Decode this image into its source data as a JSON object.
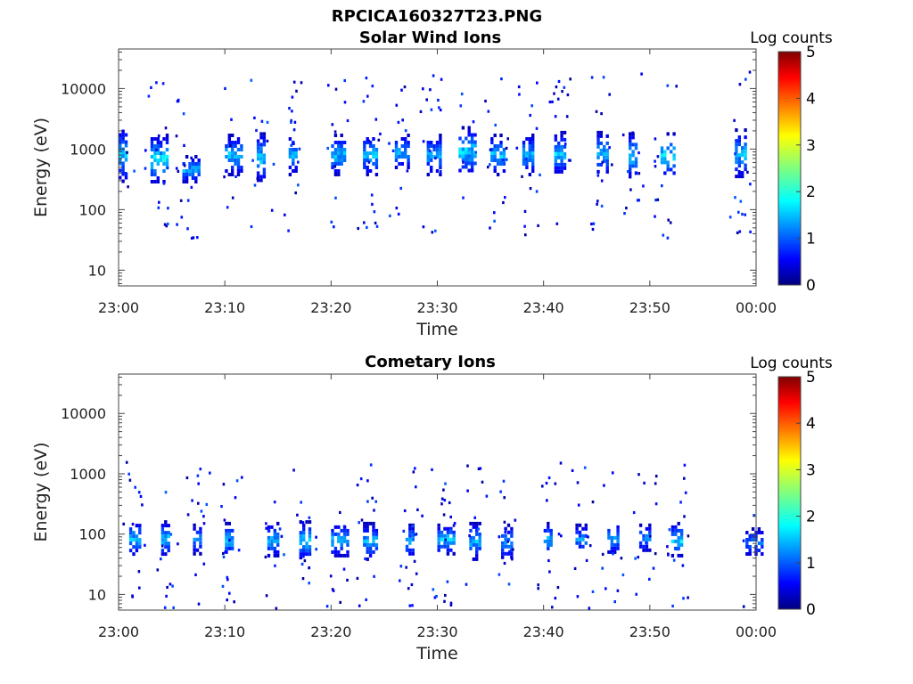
{
  "figure": {
    "title": "RPCICA160327T23.PNG"
  },
  "chart_data": [
    {
      "type": "heatmap",
      "title": "Solar Wind Ions",
      "xlabel": "Time",
      "ylabel": "Energy (eV)",
      "x_ticks": [
        "23:00",
        "23:10",
        "23:20",
        "23:30",
        "23:40",
        "23:50",
        "00:00"
      ],
      "xlim": [
        "23:00",
        "00:00"
      ],
      "y_ticks": [
        "10",
        "100",
        "1000",
        "10000"
      ],
      "ylim": [
        5.5,
        45000
      ],
      "yscale": "log",
      "colorbar": {
        "label": "Log counts",
        "ticks": [
          "0",
          "1",
          "2",
          "3",
          "4",
          "5"
        ],
        "range": [
          0,
          5
        ],
        "colormap": "jet"
      },
      "bursts": [
        {
          "t": "23:00",
          "e_low": 300,
          "e_high": 2400,
          "peak": 1.9
        },
        {
          "t": "23:03",
          "e_low": 280,
          "e_high": 1800,
          "peak": 2.2
        },
        {
          "t": "23:06",
          "e_low": 300,
          "e_high": 800,
          "peak": 1.8
        },
        {
          "t": "23:10",
          "e_low": 400,
          "e_high": 1800,
          "peak": 1.9
        },
        {
          "t": "23:13",
          "e_low": 300,
          "e_high": 1900,
          "peak": 2.0
        },
        {
          "t": "23:16",
          "e_low": 400,
          "e_high": 1800,
          "peak": 1.8
        },
        {
          "t": "23:20",
          "e_low": 400,
          "e_high": 1800,
          "peak": 1.9
        },
        {
          "t": "23:23",
          "e_low": 400,
          "e_high": 1800,
          "peak": 1.9
        },
        {
          "t": "23:26",
          "e_low": 500,
          "e_high": 1800,
          "peak": 1.8
        },
        {
          "t": "23:29",
          "e_low": 400,
          "e_high": 1800,
          "peak": 1.7
        },
        {
          "t": "23:32",
          "e_low": 400,
          "e_high": 2400,
          "peak": 2.0
        },
        {
          "t": "23:35",
          "e_low": 400,
          "e_high": 1800,
          "peak": 1.9
        },
        {
          "t": "23:38",
          "e_low": 400,
          "e_high": 1800,
          "peak": 1.9
        },
        {
          "t": "23:41",
          "e_low": 400,
          "e_high": 2000,
          "peak": 1.9
        },
        {
          "t": "23:45",
          "e_low": 400,
          "e_high": 2000,
          "peak": 1.9
        },
        {
          "t": "23:48",
          "e_low": 350,
          "e_high": 1900,
          "peak": 2.1
        },
        {
          "t": "23:51",
          "e_low": 350,
          "e_high": 1900,
          "peak": 2.1
        },
        {
          "t": "23:58",
          "e_low": 350,
          "e_high": 2200,
          "peak": 1.9
        }
      ]
    },
    {
      "type": "heatmap",
      "title": "Cometary Ions",
      "xlabel": "Time",
      "ylabel": "Energy (eV)",
      "x_ticks": [
        "23:00",
        "23:10",
        "23:20",
        "23:30",
        "23:40",
        "23:50",
        "00:00"
      ],
      "xlim": [
        "23:00",
        "00:00"
      ],
      "y_ticks": [
        "10",
        "100",
        "1000",
        "10000"
      ],
      "ylim": [
        5.5,
        45000
      ],
      "yscale": "log",
      "colorbar": {
        "label": "Log counts",
        "ticks": [
          "0",
          "1",
          "2",
          "3",
          "4",
          "5"
        ],
        "range": [
          0,
          5
        ],
        "colormap": "jet"
      },
      "bursts": [
        {
          "t": "23:01",
          "e_low": 45,
          "e_high": 170,
          "peak": 1.9
        },
        {
          "t": "23:04",
          "e_low": 45,
          "e_high": 170,
          "peak": 2.0
        },
        {
          "t": "23:07",
          "e_low": 50,
          "e_high": 150,
          "peak": 1.6
        },
        {
          "t": "23:10",
          "e_low": 45,
          "e_high": 160,
          "peak": 1.9
        },
        {
          "t": "23:14",
          "e_low": 45,
          "e_high": 160,
          "peak": 1.8
        },
        {
          "t": "23:17",
          "e_low": 40,
          "e_high": 170,
          "peak": 2.0
        },
        {
          "t": "23:20",
          "e_low": 45,
          "e_high": 160,
          "peak": 1.8
        },
        {
          "t": "23:23",
          "e_low": 40,
          "e_high": 160,
          "peak": 1.8
        },
        {
          "t": "23:27",
          "e_low": 45,
          "e_high": 150,
          "peak": 1.8
        },
        {
          "t": "23:30",
          "e_low": 50,
          "e_high": 150,
          "peak": 2.0
        },
        {
          "t": "23:33",
          "e_low": 40,
          "e_high": 160,
          "peak": 1.9
        },
        {
          "t": "23:36",
          "e_low": 40,
          "e_high": 150,
          "peak": 1.6
        },
        {
          "t": "23:40",
          "e_low": 45,
          "e_high": 160,
          "peak": 1.9
        },
        {
          "t": "23:43",
          "e_low": 50,
          "e_high": 150,
          "peak": 1.6
        },
        {
          "t": "23:46",
          "e_low": 50,
          "e_high": 160,
          "peak": 1.8
        },
        {
          "t": "23:49",
          "e_low": 55,
          "e_high": 150,
          "peak": 1.6
        },
        {
          "t": "23:52",
          "e_low": 45,
          "e_high": 160,
          "peak": 2.1
        },
        {
          "t": "23:59",
          "e_low": 45,
          "e_high": 130,
          "peak": 1.5
        }
      ]
    }
  ]
}
